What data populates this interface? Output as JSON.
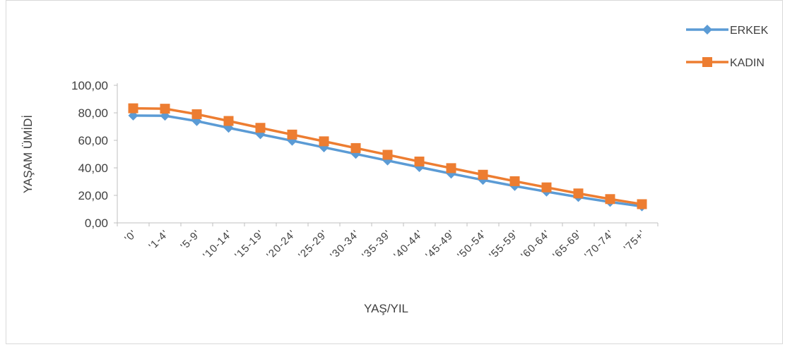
{
  "chart_data": {
    "type": "line",
    "title": "",
    "xlabel": "YAŞ/YIL",
    "ylabel": "YAŞAM ÜMİDİ",
    "ylim": [
      0,
      100
    ],
    "yticks": [
      "0,00",
      "20,00",
      "40,00",
      "60,00",
      "80,00",
      "100,00"
    ],
    "categories": [
      "'0'",
      "'1-4'",
      "'5-9'",
      "'10-14'",
      "'15-19'",
      "'20-24'",
      "'25-29'",
      "'30-34'",
      "'35-39'",
      "'40-44'",
      "'45-49'",
      "'50-54'",
      "'55-59'",
      "'60-64'",
      "'65-69'",
      "'70-74'",
      "'75+'"
    ],
    "series": [
      {
        "name": "ERKEK",
        "color": "#5b9bd5",
        "marker": "diamond",
        "values": [
          78.0,
          77.9,
          74.0,
          69.1,
          64.4,
          59.7,
          54.9,
          50.1,
          45.3,
          40.5,
          35.8,
          31.2,
          26.8,
          22.7,
          18.8,
          15.2,
          12.0
        ]
      },
      {
        "name": "KADIN",
        "color": "#ed7d31",
        "marker": "square",
        "values": [
          83.3,
          83.0,
          79.0,
          74.1,
          69.1,
          64.2,
          59.3,
          54.4,
          49.5,
          44.6,
          39.8,
          35.0,
          30.3,
          25.8,
          21.4,
          17.3,
          13.6
        ]
      }
    ],
    "legend": "top-right",
    "grid": false
  }
}
